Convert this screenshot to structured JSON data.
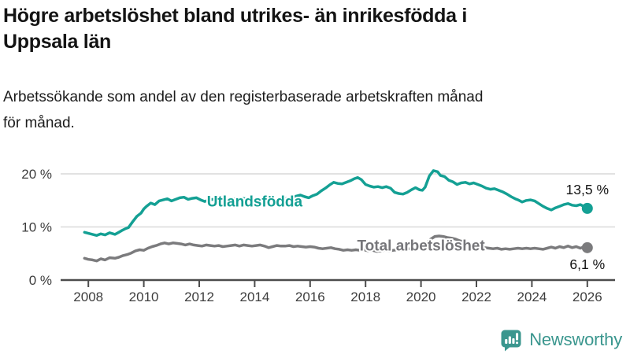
{
  "header": {
    "title_lines": [
      "Högre arbetslöshet bland utrikes- än inrikesfödda i",
      "Uppsala län"
    ],
    "subtitle_lines": [
      "Arbetssökande som andel av den registerbaserade arbetskraften månad",
      "för månad."
    ]
  },
  "footer": {
    "brand": "Newsworthy",
    "brand_color": "#3a968e",
    "logo_icon": "bar-chart-speech-bubble-icon"
  },
  "chart_data": {
    "type": "line",
    "x_range": [
      2007.0,
      2027.0
    ],
    "y_range": [
      0,
      20
    ],
    "grid": "horizontal",
    "x_ticks": [
      2008,
      2010,
      2012,
      2014,
      2016,
      2018,
      2020,
      2022,
      2024,
      2026
    ],
    "y_ticks": [
      {
        "value": 0,
        "label": "0 %"
      },
      {
        "value": 10,
        "label": "10 %"
      },
      {
        "value": 20,
        "label": "20 %"
      }
    ],
    "colors": {
      "grid": "#d9d9d9",
      "axis": "#4c4c4c",
      "background": "#ffffff"
    },
    "series_labels": [
      {
        "text": "Utlandsfödda",
        "x": 2014.0,
        "y": 14.8,
        "color": "#14a094"
      },
      {
        "text": "Total arbetslöshet",
        "x": 2020.0,
        "y": 6.5,
        "color": "#76767a"
      }
    ],
    "series": [
      {
        "name": "Utlandsfödda",
        "color": "#14a094",
        "end_label": "13,5 %",
        "end_value": 13.5,
        "points": [
          [
            2007.86,
            9.0
          ],
          [
            2008.0,
            8.8
          ],
          [
            2008.15,
            8.6
          ],
          [
            2008.3,
            8.4
          ],
          [
            2008.45,
            8.7
          ],
          [
            2008.6,
            8.5
          ],
          [
            2008.77,
            8.9
          ],
          [
            2008.96,
            8.6
          ],
          [
            2009.1,
            9.0
          ],
          [
            2009.2,
            9.3
          ],
          [
            2009.35,
            9.7
          ],
          [
            2009.45,
            9.9
          ],
          [
            2009.6,
            11.0
          ],
          [
            2009.75,
            12.0
          ],
          [
            2009.9,
            12.6
          ],
          [
            2010.0,
            13.4
          ],
          [
            2010.1,
            13.9
          ],
          [
            2010.25,
            14.5
          ],
          [
            2010.4,
            14.2
          ],
          [
            2010.55,
            14.9
          ],
          [
            2010.7,
            15.1
          ],
          [
            2010.85,
            15.3
          ],
          [
            2011.0,
            14.9
          ],
          [
            2011.15,
            15.2
          ],
          [
            2011.3,
            15.5
          ],
          [
            2011.45,
            15.6
          ],
          [
            2011.6,
            15.2
          ],
          [
            2011.75,
            15.4
          ],
          [
            2011.9,
            15.5
          ],
          [
            2012.05,
            15.1
          ],
          [
            2012.2,
            14.8
          ],
          [
            2012.35,
            15.1
          ],
          [
            2012.5,
            15.2
          ],
          [
            2012.65,
            15.0
          ],
          [
            2012.8,
            14.8
          ],
          [
            2012.95,
            15.0
          ],
          [
            2013.1,
            15.2
          ],
          [
            2013.25,
            15.3
          ],
          [
            2013.4,
            15.1
          ],
          [
            2013.55,
            15.4
          ],
          [
            2013.7,
            15.3
          ],
          [
            2013.85,
            15.1
          ],
          [
            2014.0,
            15.0
          ],
          [
            2014.15,
            15.2
          ],
          [
            2014.3,
            15.4
          ],
          [
            2014.45,
            15.5
          ],
          [
            2014.6,
            15.2
          ],
          [
            2014.75,
            15.0
          ],
          [
            2014.9,
            15.2
          ],
          [
            2015.05,
            15.3
          ],
          [
            2015.2,
            15.4
          ],
          [
            2015.35,
            15.5
          ],
          [
            2015.5,
            15.8
          ],
          [
            2015.65,
            16.0
          ],
          [
            2015.8,
            15.7
          ],
          [
            2015.95,
            15.5
          ],
          [
            2016.1,
            15.9
          ],
          [
            2016.25,
            16.2
          ],
          [
            2016.4,
            16.8
          ],
          [
            2016.55,
            17.3
          ],
          [
            2016.7,
            17.9
          ],
          [
            2016.85,
            18.4
          ],
          [
            2017.0,
            18.2
          ],
          [
            2017.15,
            18.1
          ],
          [
            2017.3,
            18.4
          ],
          [
            2017.45,
            18.7
          ],
          [
            2017.6,
            19.1
          ],
          [
            2017.72,
            19.3
          ],
          [
            2017.85,
            18.9
          ],
          [
            2018.0,
            18.0
          ],
          [
            2018.15,
            17.7
          ],
          [
            2018.3,
            17.5
          ],
          [
            2018.45,
            17.6
          ],
          [
            2018.6,
            17.4
          ],
          [
            2018.75,
            17.6
          ],
          [
            2018.9,
            17.3
          ],
          [
            2019.05,
            16.5
          ],
          [
            2019.2,
            16.3
          ],
          [
            2019.35,
            16.2
          ],
          [
            2019.5,
            16.5
          ],
          [
            2019.65,
            17.0
          ],
          [
            2019.8,
            17.4
          ],
          [
            2019.95,
            17.0
          ],
          [
            2020.05,
            16.9
          ],
          [
            2020.15,
            17.5
          ],
          [
            2020.3,
            19.6
          ],
          [
            2020.45,
            20.6
          ],
          [
            2020.6,
            20.4
          ],
          [
            2020.7,
            19.7
          ],
          [
            2020.85,
            19.5
          ],
          [
            2021.0,
            18.8
          ],
          [
            2021.15,
            18.5
          ],
          [
            2021.3,
            18.0
          ],
          [
            2021.45,
            18.3
          ],
          [
            2021.6,
            18.4
          ],
          [
            2021.75,
            18.1
          ],
          [
            2021.9,
            18.3
          ],
          [
            2022.05,
            18.0
          ],
          [
            2022.2,
            17.7
          ],
          [
            2022.35,
            17.3
          ],
          [
            2022.5,
            17.1
          ],
          [
            2022.65,
            17.2
          ],
          [
            2022.8,
            16.9
          ],
          [
            2022.95,
            16.6
          ],
          [
            2023.1,
            16.2
          ],
          [
            2023.25,
            15.7
          ],
          [
            2023.4,
            15.3
          ],
          [
            2023.5,
            15.1
          ],
          [
            2023.65,
            14.7
          ],
          [
            2023.8,
            15.0
          ],
          [
            2023.95,
            15.1
          ],
          [
            2024.1,
            14.9
          ],
          [
            2024.25,
            14.4
          ],
          [
            2024.4,
            13.9
          ],
          [
            2024.55,
            13.5
          ],
          [
            2024.7,
            13.2
          ],
          [
            2024.85,
            13.6
          ],
          [
            2025.0,
            13.9
          ],
          [
            2025.15,
            14.2
          ],
          [
            2025.3,
            14.4
          ],
          [
            2025.45,
            14.1
          ],
          [
            2025.6,
            14.0
          ],
          [
            2025.75,
            14.2
          ],
          [
            2025.9,
            13.8
          ],
          [
            2026.0,
            13.5
          ]
        ]
      },
      {
        "name": "Total arbetslöshet",
        "color": "#7b7b7d",
        "end_label": "6,1 %",
        "end_value": 6.1,
        "points": [
          [
            2007.86,
            4.1
          ],
          [
            2008.0,
            3.9
          ],
          [
            2008.15,
            3.8
          ],
          [
            2008.3,
            3.6
          ],
          [
            2008.45,
            4.0
          ],
          [
            2008.6,
            3.8
          ],
          [
            2008.77,
            4.2
          ],
          [
            2008.96,
            4.1
          ],
          [
            2009.1,
            4.3
          ],
          [
            2009.25,
            4.6
          ],
          [
            2009.4,
            4.8
          ],
          [
            2009.55,
            5.1
          ],
          [
            2009.7,
            5.5
          ],
          [
            2009.85,
            5.7
          ],
          [
            2010.0,
            5.6
          ],
          [
            2010.15,
            6.0
          ],
          [
            2010.3,
            6.3
          ],
          [
            2010.45,
            6.5
          ],
          [
            2010.6,
            6.8
          ],
          [
            2010.75,
            7.0
          ],
          [
            2010.9,
            6.8
          ],
          [
            2011.05,
            7.0
          ],
          [
            2011.2,
            6.9
          ],
          [
            2011.35,
            6.8
          ],
          [
            2011.5,
            6.6
          ],
          [
            2011.65,
            6.8
          ],
          [
            2011.8,
            6.6
          ],
          [
            2011.95,
            6.5
          ],
          [
            2012.1,
            6.4
          ],
          [
            2012.25,
            6.6
          ],
          [
            2012.4,
            6.5
          ],
          [
            2012.55,
            6.4
          ],
          [
            2012.7,
            6.5
          ],
          [
            2012.85,
            6.3
          ],
          [
            2013.0,
            6.4
          ],
          [
            2013.15,
            6.5
          ],
          [
            2013.3,
            6.6
          ],
          [
            2013.45,
            6.4
          ],
          [
            2013.6,
            6.6
          ],
          [
            2013.75,
            6.5
          ],
          [
            2013.9,
            6.4
          ],
          [
            2014.05,
            6.5
          ],
          [
            2014.2,
            6.6
          ],
          [
            2014.35,
            6.4
          ],
          [
            2014.5,
            6.1
          ],
          [
            2014.65,
            6.3
          ],
          [
            2014.8,
            6.5
          ],
          [
            2014.95,
            6.4
          ],
          [
            2015.1,
            6.4
          ],
          [
            2015.25,
            6.5
          ],
          [
            2015.4,
            6.3
          ],
          [
            2015.55,
            6.4
          ],
          [
            2015.7,
            6.3
          ],
          [
            2015.85,
            6.2
          ],
          [
            2016.0,
            6.3
          ],
          [
            2016.15,
            6.2
          ],
          [
            2016.3,
            6.0
          ],
          [
            2016.45,
            5.9
          ],
          [
            2016.6,
            6.0
          ],
          [
            2016.75,
            6.1
          ],
          [
            2016.9,
            5.9
          ],
          [
            2017.05,
            5.8
          ],
          [
            2017.2,
            5.6
          ],
          [
            2017.35,
            5.7
          ],
          [
            2017.5,
            5.6
          ],
          [
            2017.65,
            5.7
          ],
          [
            2017.8,
            5.6
          ],
          [
            2017.95,
            5.7
          ],
          [
            2018.1,
            5.5
          ],
          [
            2018.25,
            5.6
          ],
          [
            2018.4,
            5.4
          ],
          [
            2018.55,
            5.5
          ],
          [
            2018.7,
            5.6
          ],
          [
            2018.85,
            5.5
          ],
          [
            2019.0,
            5.6
          ],
          [
            2019.15,
            5.7
          ],
          [
            2019.3,
            5.6
          ],
          [
            2019.45,
            5.8
          ],
          [
            2019.6,
            5.9
          ],
          [
            2019.75,
            5.8
          ],
          [
            2019.9,
            5.9
          ],
          [
            2020.05,
            6.1
          ],
          [
            2020.2,
            6.9
          ],
          [
            2020.35,
            7.7
          ],
          [
            2020.5,
            8.2
          ],
          [
            2020.65,
            8.3
          ],
          [
            2020.8,
            8.2
          ],
          [
            2020.95,
            8.0
          ],
          [
            2021.1,
            7.9
          ],
          [
            2021.25,
            7.7
          ],
          [
            2021.4,
            7.4
          ],
          [
            2021.55,
            7.2
          ],
          [
            2021.7,
            6.9
          ],
          [
            2021.85,
            6.7
          ],
          [
            2022.0,
            6.5
          ],
          [
            2022.15,
            6.3
          ],
          [
            2022.3,
            6.1
          ],
          [
            2022.45,
            6.0
          ],
          [
            2022.6,
            5.9
          ],
          [
            2022.75,
            6.0
          ],
          [
            2022.9,
            5.8
          ],
          [
            2023.05,
            5.9
          ],
          [
            2023.2,
            5.8
          ],
          [
            2023.35,
            5.9
          ],
          [
            2023.5,
            6.0
          ],
          [
            2023.65,
            5.9
          ],
          [
            2023.8,
            6.0
          ],
          [
            2023.95,
            5.9
          ],
          [
            2024.1,
            6.0
          ],
          [
            2024.25,
            5.9
          ],
          [
            2024.4,
            5.8
          ],
          [
            2024.55,
            6.0
          ],
          [
            2024.7,
            6.2
          ],
          [
            2024.85,
            6.0
          ],
          [
            2025.0,
            6.3
          ],
          [
            2025.15,
            6.1
          ],
          [
            2025.3,
            6.4
          ],
          [
            2025.45,
            6.1
          ],
          [
            2025.6,
            6.3
          ],
          [
            2025.75,
            6.0
          ],
          [
            2025.9,
            6.3
          ],
          [
            2026.0,
            6.1
          ]
        ]
      }
    ]
  }
}
